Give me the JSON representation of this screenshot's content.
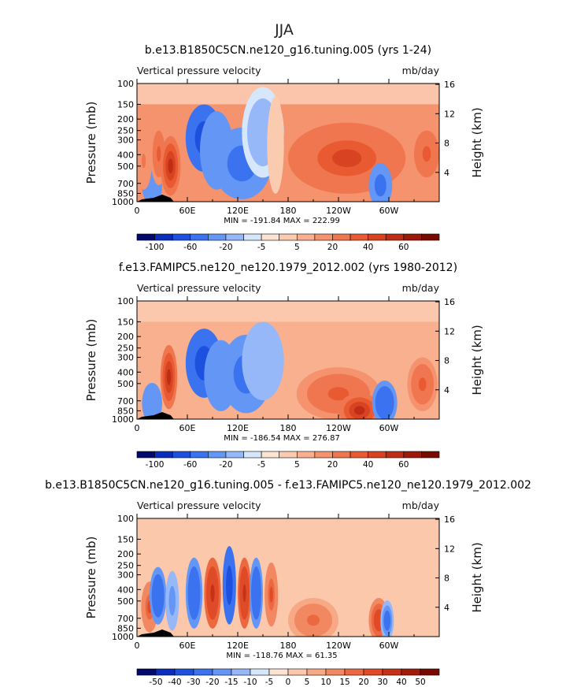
{
  "figure_title": "JJA",
  "colors": {
    "deep_blue": "#000a6e",
    "light_blue": "#d6e6fb",
    "white": "#ffffff",
    "light_red": "#fde3d2",
    "deep_red": "#7a0a00"
  },
  "chart_data": [
    {
      "type": "heatmap",
      "title": "b.e13.B1850C5CN.ne120_g16.tuning.005 (yrs 1-24)",
      "left_label": "Vertical pressure velocity",
      "right_label": "mb/day",
      "ylabel": "Pressure (mb)",
      "ylabel_right": "Height (km)",
      "x_ticks": [
        "0",
        "60E",
        "120E",
        "180",
        "120W",
        "60W"
      ],
      "y_ticks": [
        "100",
        "150",
        "200",
        "250",
        "300",
        "400",
        "500",
        "700",
        "850",
        "1000"
      ],
      "height_ticks": [
        "16",
        "12",
        "8",
        "4"
      ],
      "xlim": [
        0,
        360
      ],
      "ylim": [
        1000,
        100
      ],
      "stats": "MIN = -191.84   MAX = 222.99",
      "levels": [
        -100,
        -80,
        -60,
        -40,
        -20,
        -10,
        -5,
        0,
        5,
        10,
        20,
        30,
        40,
        50,
        60,
        80
      ],
      "colorbar_labels": [
        "-100",
        "-60",
        "-20",
        "-5",
        "5",
        "20",
        "40",
        "60"
      ],
      "background_level": 10,
      "features": [
        {
          "lon": 18,
          "p": 700,
          "value": -40,
          "w": 12,
          "h": 200
        },
        {
          "lon": 26,
          "p": 400,
          "value": 30,
          "w": 10,
          "h": 300
        },
        {
          "lon": 40,
          "p": 500,
          "value": 50,
          "w": 12,
          "h": 350
        },
        {
          "lon": 8,
          "p": 450,
          "value": 20,
          "w": 10,
          "h": 300
        },
        {
          "lon": 80,
          "p": 300,
          "value": -80,
          "w": 22,
          "h": 250
        },
        {
          "lon": 95,
          "p": 400,
          "value": -40,
          "w": 20,
          "h": 400
        },
        {
          "lon": 125,
          "p": 500,
          "value": -50,
          "w": 35,
          "h": 450
        },
        {
          "lon": 150,
          "p": 300,
          "value": -15,
          "w": 25,
          "h": 350
        },
        {
          "lon": 165,
          "p": 400,
          "value": 0,
          "w": 10,
          "h": 500
        },
        {
          "lon": 250,
          "p": 450,
          "value": 40,
          "w": 70,
          "h": 400
        },
        {
          "lon": 290,
          "p": 700,
          "value": -50,
          "w": 14,
          "h": 300
        },
        {
          "lon": 345,
          "p": 400,
          "value": 30,
          "w": 20,
          "h": 300
        }
      ]
    },
    {
      "type": "heatmap",
      "title": "f.e13.FAMIPC5.ne120_ne120.1979_2012.002 (yrs 1980-2012)",
      "left_label": "Vertical pressure velocity",
      "right_label": "mb/day",
      "ylabel": "Pressure (mb)",
      "ylabel_right": "Height (km)",
      "x_ticks": [
        "0",
        "60E",
        "120E",
        "180",
        "120W",
        "60W"
      ],
      "y_ticks": [
        "100",
        "150",
        "200",
        "250",
        "300",
        "400",
        "500",
        "700",
        "850",
        "1000"
      ],
      "height_ticks": [
        "16",
        "12",
        "8",
        "4"
      ],
      "xlim": [
        0,
        360
      ],
      "ylim": [
        1000,
        100
      ],
      "stats": "MIN = -186.54   MAX = 276.87",
      "levels": [
        -100,
        -80,
        -60,
        -40,
        -20,
        -10,
        -5,
        0,
        5,
        10,
        20,
        30,
        40,
        50,
        60,
        80
      ],
      "colorbar_labels": [
        "-100",
        "-60",
        "-20",
        "-5",
        "5",
        "20",
        "40",
        "60"
      ],
      "background_level": 5,
      "features": [
        {
          "lon": 18,
          "p": 700,
          "value": -40,
          "w": 12,
          "h": 250
        },
        {
          "lon": 38,
          "p": 450,
          "value": 50,
          "w": 10,
          "h": 350
        },
        {
          "lon": 80,
          "p": 350,
          "value": -80,
          "w": 22,
          "h": 300
        },
        {
          "lon": 100,
          "p": 450,
          "value": -40,
          "w": 20,
          "h": 400
        },
        {
          "lon": 130,
          "p": 450,
          "value": -50,
          "w": 30,
          "h": 450
        },
        {
          "lon": 150,
          "p": 350,
          "value": -20,
          "w": 25,
          "h": 350
        },
        {
          "lon": 240,
          "p": 600,
          "value": 30,
          "w": 50,
          "h": 350
        },
        {
          "lon": 265,
          "p": 800,
          "value": 50,
          "w": 25,
          "h": 200
        },
        {
          "lon": 295,
          "p": 700,
          "value": -60,
          "w": 15,
          "h": 300
        },
        {
          "lon": 340,
          "p": 500,
          "value": 30,
          "w": 18,
          "h": 300
        }
      ]
    },
    {
      "type": "heatmap",
      "title": "b.e13.B1850C5CN.ne120_g16.tuning.005 - f.e13.FAMIPC5.ne120_ne120.1979_2012.002",
      "left_label": "Vertical pressure velocity",
      "right_label": "mb/day",
      "ylabel": "Pressure (mb)",
      "ylabel_right": "Height (km)",
      "x_ticks": [
        "0",
        "60E",
        "120E",
        "180",
        "120W",
        "60W"
      ],
      "y_ticks": [
        "100",
        "150",
        "200",
        "250",
        "300",
        "400",
        "500",
        "700",
        "850",
        "1000"
      ],
      "height_ticks": [
        "16",
        "12",
        "8",
        "4"
      ],
      "xlim": [
        0,
        360
      ],
      "ylim": [
        1000,
        100
      ],
      "stats": "MIN = -118.76   MAX = 61.35",
      "levels": [
        -50,
        -40,
        -30,
        -20,
        -15,
        -10,
        -5,
        0,
        5,
        10,
        15,
        20,
        30,
        40,
        50
      ],
      "colorbar_labels": [
        "-50",
        "-40",
        "-30",
        "-20",
        "-15",
        "-10",
        "-5",
        "0",
        "5",
        "10",
        "15",
        "20",
        "30",
        "40",
        "50"
      ],
      "background_level": 2,
      "features": [
        {
          "lon": 15,
          "p": 550,
          "value": 20,
          "w": 10,
          "h": 300
        },
        {
          "lon": 25,
          "p": 450,
          "value": -30,
          "w": 10,
          "h": 300
        },
        {
          "lon": 42,
          "p": 500,
          "value": -20,
          "w": 8,
          "h": 350
        },
        {
          "lon": 68,
          "p": 450,
          "value": -30,
          "w": 10,
          "h": 400
        },
        {
          "lon": 90,
          "p": 450,
          "value": 30,
          "w": 10,
          "h": 400
        },
        {
          "lon": 110,
          "p": 400,
          "value": -40,
          "w": 8,
          "h": 400
        },
        {
          "lon": 128,
          "p": 450,
          "value": 30,
          "w": 8,
          "h": 400
        },
        {
          "lon": 142,
          "p": 450,
          "value": -30,
          "w": 8,
          "h": 400
        },
        {
          "lon": 160,
          "p": 450,
          "value": 20,
          "w": 8,
          "h": 350
        },
        {
          "lon": 210,
          "p": 700,
          "value": 15,
          "w": 30,
          "h": 300
        },
        {
          "lon": 288,
          "p": 700,
          "value": 25,
          "w": 12,
          "h": 300
        },
        {
          "lon": 298,
          "p": 700,
          "value": -25,
          "w": 8,
          "h": 250
        }
      ]
    }
  ]
}
